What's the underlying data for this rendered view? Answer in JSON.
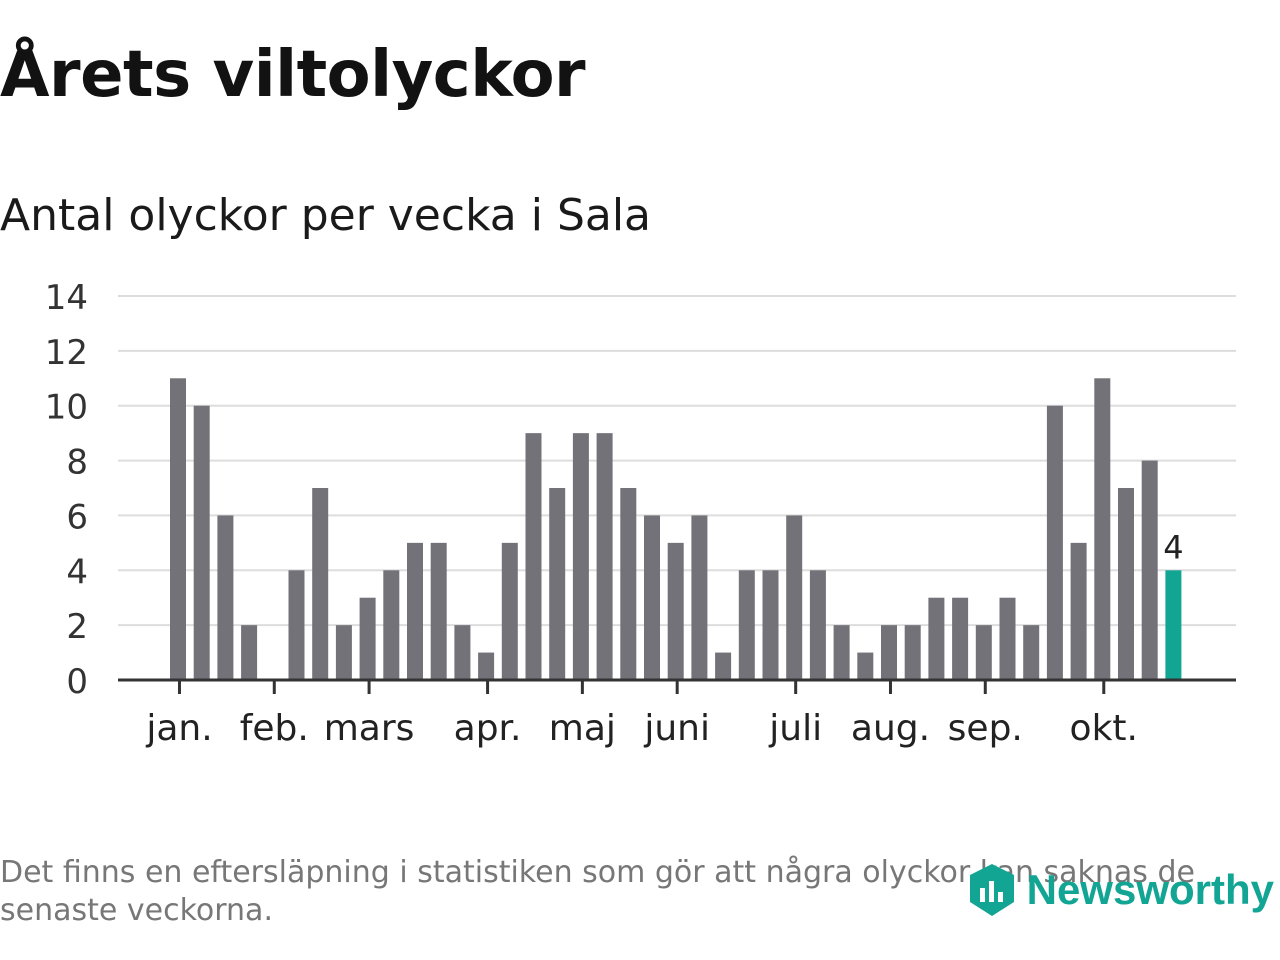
{
  "title": "Årets viltolyckor",
  "subtitle": "Antal olyckor per vecka i Sala",
  "footnote": "Det finns en eftersläpning i statistiken som gör att några olyckor kan saknas de senaste veckorna.",
  "brand": {
    "name": "Newsworthy",
    "icon": "newsworthy-logo-icon"
  },
  "colors": {
    "bar": "#737279",
    "highlight": "#12a594",
    "grid": "#dddddd",
    "axis": "#333333"
  },
  "chart_data": {
    "type": "bar",
    "ylim": [
      0,
      14
    ],
    "yticks": [
      "0",
      "2",
      "4",
      "6",
      "8",
      "10",
      "12",
      "14"
    ],
    "values": [
      11,
      10,
      6,
      2,
      0,
      4,
      7,
      2,
      3,
      4,
      5,
      5,
      2,
      1,
      5,
      9,
      7,
      9,
      9,
      7,
      6,
      5,
      6,
      1,
      4,
      4,
      6,
      4,
      2,
      1,
      2,
      2,
      3,
      3,
      2,
      3,
      2,
      10,
      5,
      11,
      7,
      8,
      4
    ],
    "highlight_index": 42,
    "highlight_label": "4",
    "month_labels": [
      {
        "label": "jan.",
        "week": 0.4
      },
      {
        "label": "feb.",
        "week": 4.4
      },
      {
        "label": "mars",
        "week": 8.4
      },
      {
        "label": "apr.",
        "week": 13.4
      },
      {
        "label": "maj",
        "week": 17.4
      },
      {
        "label": "juni",
        "week": 21.4
      },
      {
        "label": "juli",
        "week": 26.4
      },
      {
        "label": "aug.",
        "week": 30.4
      },
      {
        "label": "sep.",
        "week": 34.4
      },
      {
        "label": "okt.",
        "week": 39.4
      }
    ],
    "grid": true,
    "legend": "none"
  }
}
